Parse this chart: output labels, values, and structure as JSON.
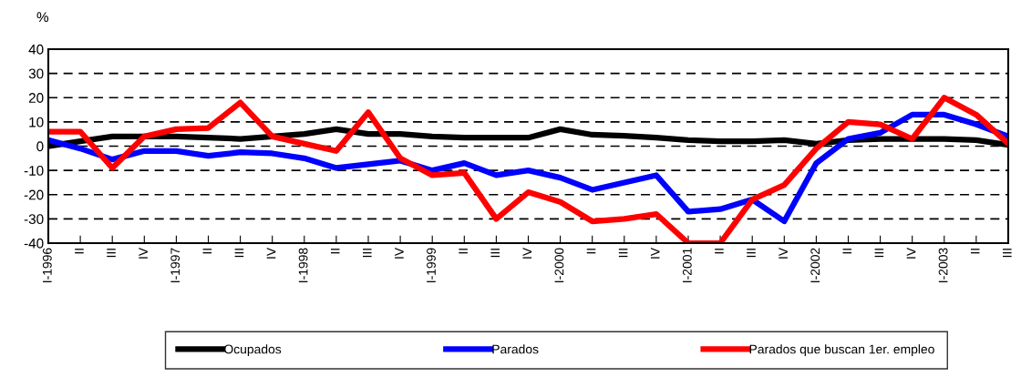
{
  "chart_data": {
    "type": "line",
    "ylabel": "%",
    "categories": [
      "I-1996",
      "II",
      "III",
      "IV",
      "I-1997",
      "II",
      "III",
      "IV",
      "I-1998",
      "II",
      "III",
      "IV",
      "I-1999",
      "II",
      "III",
      "IV",
      "I-2000",
      "II",
      "III",
      "IV",
      "I-2001",
      "II",
      "III",
      "IV",
      "I-2002",
      "II",
      "III",
      "IV",
      "I-2003",
      "II",
      "III"
    ],
    "series": [
      {
        "name": "Ocupados",
        "color": "#000000",
        "values": [
          0,
          2,
          4,
          4,
          4,
          3.5,
          3,
          4,
          5,
          7,
          5,
          5,
          4,
          3.5,
          3.5,
          3.5,
          7,
          4.7,
          4.3,
          3.5,
          2.5,
          2,
          2,
          2.5,
          1,
          2.5,
          3,
          3,
          3,
          2.5,
          0.5
        ]
      },
      {
        "name": "Parados",
        "color": "#0000ff",
        "values": [
          2.5,
          -1,
          -5.5,
          -2,
          -2,
          -4,
          -2.5,
          -3,
          -5,
          -9,
          -7.5,
          -6,
          -10,
          -7,
          -12,
          -10,
          -13,
          -18,
          -15,
          -12,
          -27,
          -26,
          -22,
          -31,
          -7,
          3,
          5.5,
          13,
          13,
          9,
          4
        ]
      },
      {
        "name": "Parados que buscan 1er. empleo",
        "color": "#ff0000",
        "values": [
          6,
          6,
          -9,
          4,
          7,
          7.5,
          18,
          4,
          1,
          -2,
          14,
          -5,
          -12,
          -11,
          -30,
          -19,
          -23,
          -31,
          -30,
          -28,
          -40,
          -40,
          -22,
          -16,
          -1,
          10,
          9,
          3,
          20,
          13,
          1
        ]
      }
    ],
    "ylim": [
      -40,
      40
    ],
    "yticks": [
      -40,
      -30,
      -20,
      -10,
      0,
      10,
      20,
      30,
      40
    ],
    "grid": "y",
    "legend": "bottom",
    "marker": "none",
    "line_style": "solid"
  }
}
